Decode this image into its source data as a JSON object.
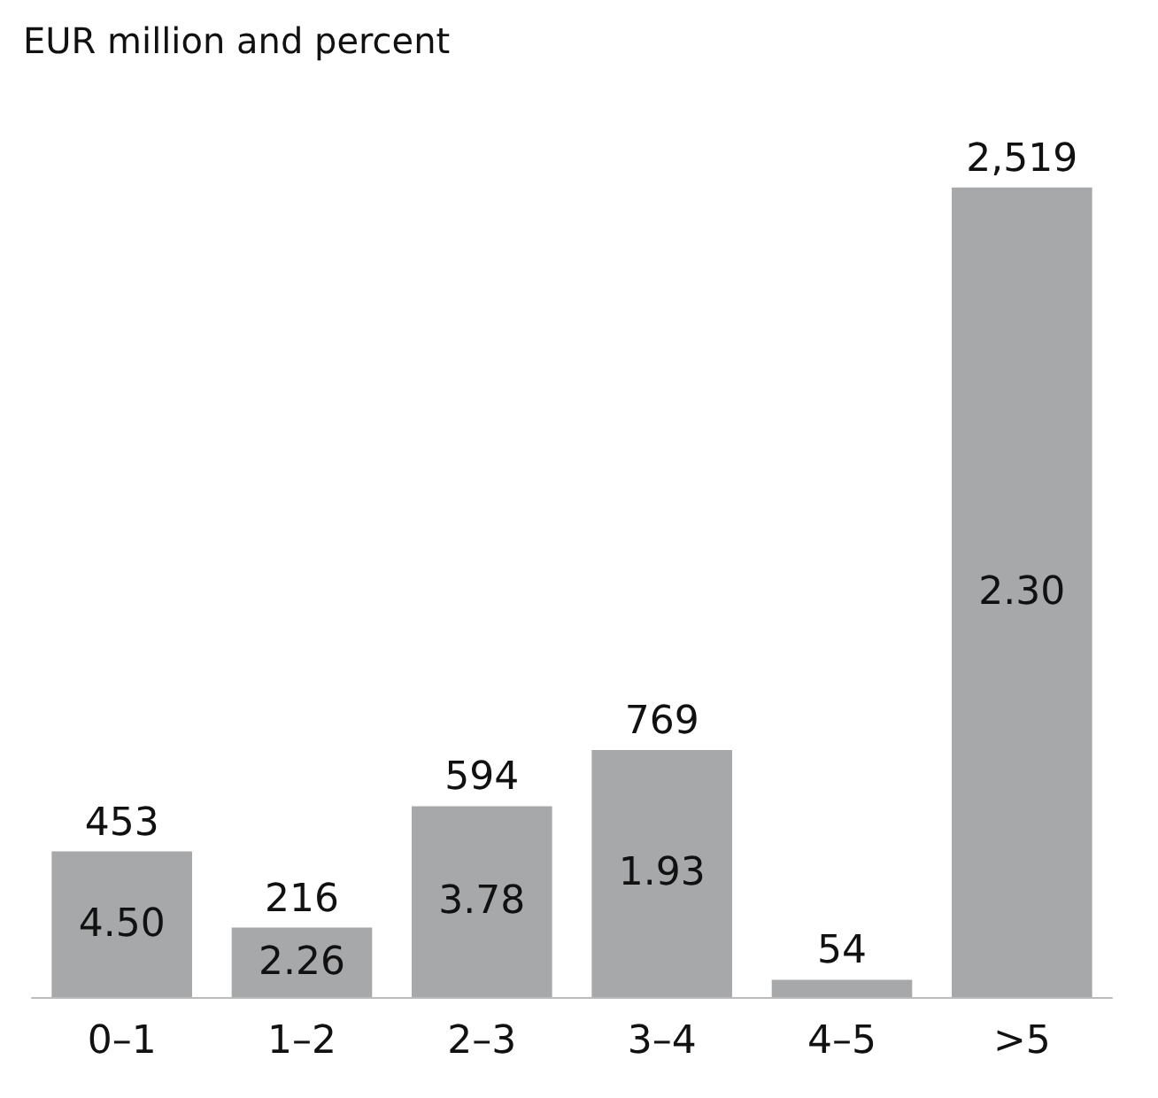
{
  "chart_data": {
    "type": "bar",
    "title": "EUR million and percent",
    "categories": [
      "0–1",
      "1–2",
      "2–3",
      "3–4",
      "4–5",
      ">5"
    ],
    "values": [
      453,
      216,
      594,
      769,
      54,
      2519
    ],
    "color": "#a7a8aa",
    "value_labels": [
      "453",
      "216",
      "594",
      "769",
      "54",
      "2,519"
    ],
    "annotations": [
      "4.50",
      "2.26",
      "3.78",
      "1.93",
      "2.30"
    ]
  }
}
